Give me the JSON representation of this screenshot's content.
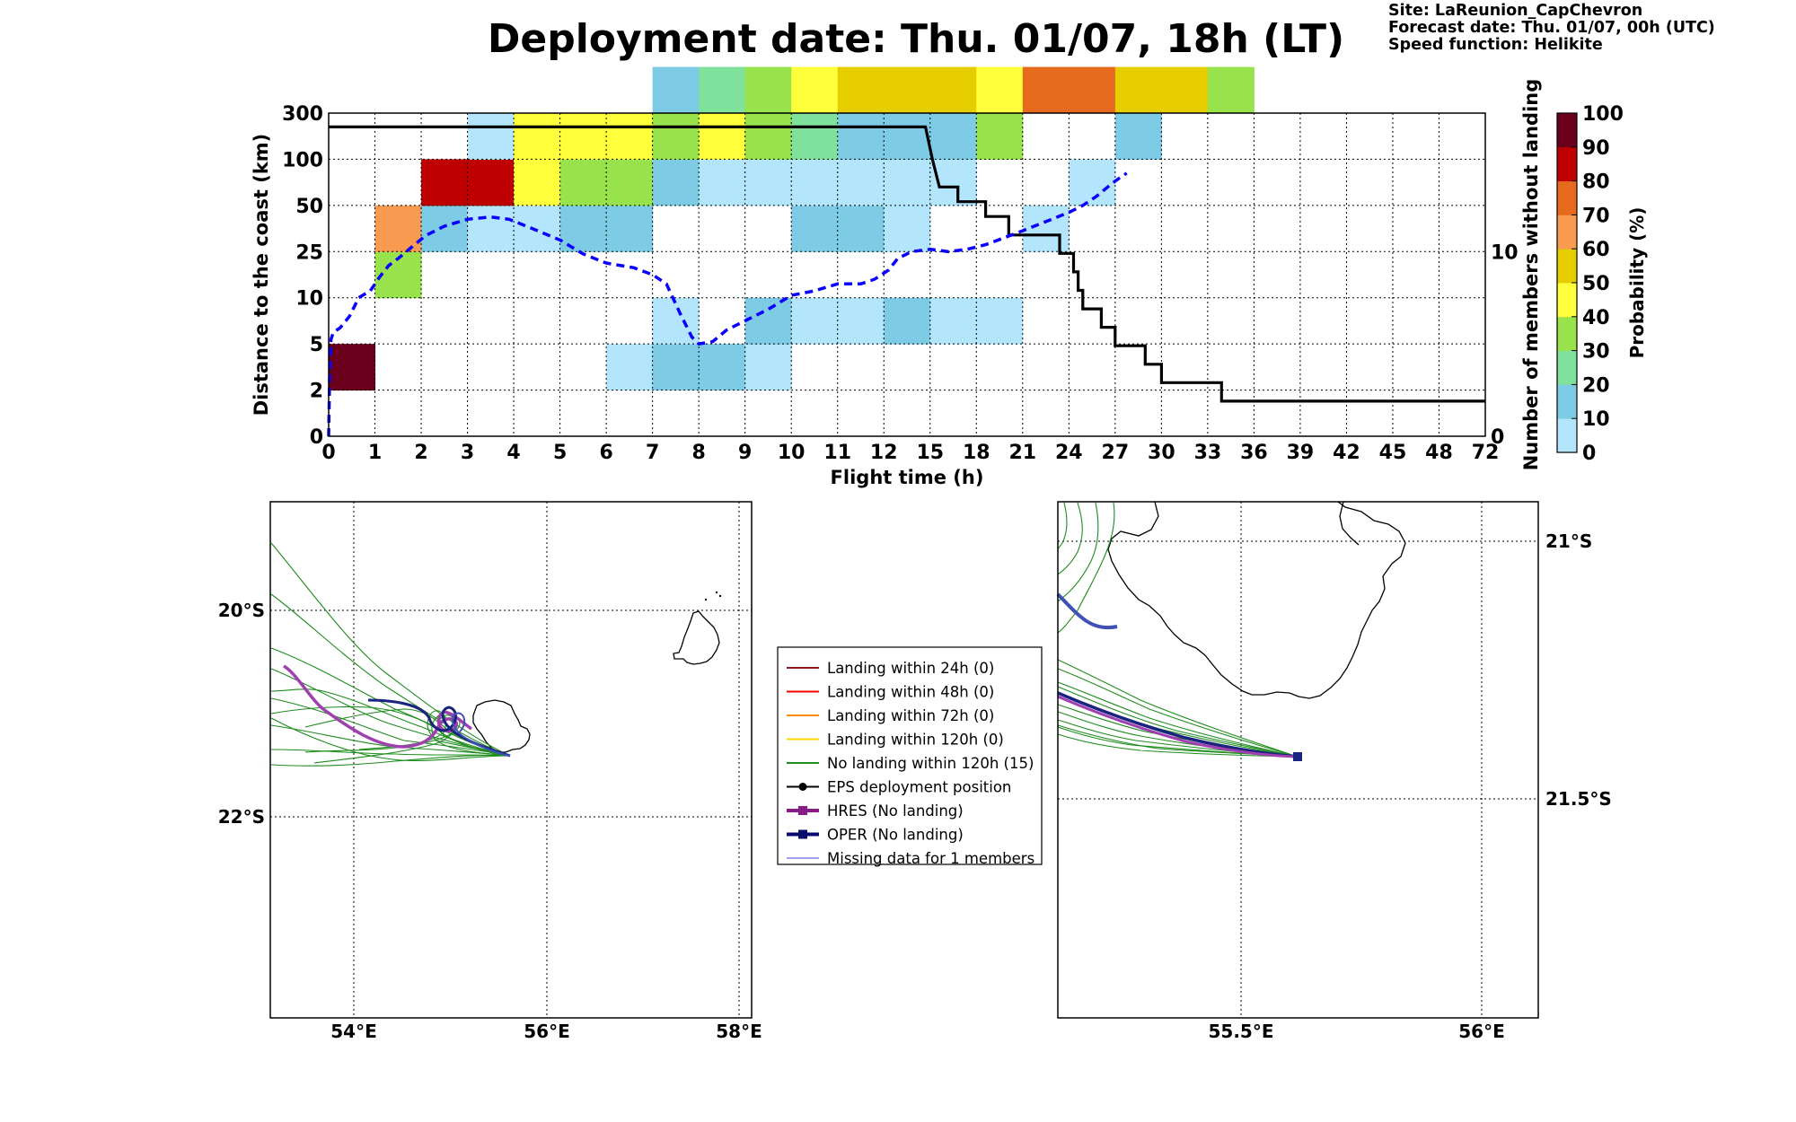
{
  "title": "Deployment date: Thu. 01/07, 18h (LT)",
  "info": {
    "site": "Site: LaReunion_CapChevron",
    "forecast": "Forecast date: Thu. 01/07, 00h (UTC)",
    "speed": "Speed function: Helikite"
  },
  "colors": {
    "prob_bins": [
      "#b3e5fc",
      "#7ecbe6",
      "#7fe19c",
      "#98e34b",
      "#ffff3c",
      "#e5cd00",
      "#f89a4f",
      "#e56a1d",
      "#bf0000",
      "#6b001d"
    ],
    "median_curve": "#0a00ff",
    "count_curve": "#000000",
    "traj_green": "#1e8c1e",
    "hres": "#a040b0",
    "oper": "#1a237e",
    "missing": "#4040e0"
  },
  "chart_data": [
    {
      "type": "heatmap",
      "title": "",
      "xlabel": "Flight time (h)",
      "ylabel": "Distance to the coast (km)",
      "ylabel_right": "Number of members without landing",
      "colorbar_label": "Probability (%)",
      "grid": true,
      "x_ticks": [
        "0",
        "1",
        "2",
        "3",
        "4",
        "5",
        "6",
        "7",
        "8",
        "9",
        "10",
        "11",
        "12",
        "15",
        "18",
        "21",
        "24",
        "27",
        "30",
        "33",
        "36",
        "39",
        "42",
        "45",
        "48",
        "72"
      ],
      "y_ticks": [
        "0",
        "2",
        "5",
        "10",
        "25",
        "50",
        "100",
        "300"
      ],
      "y_right_ticks": [
        "0",
        "10"
      ],
      "y_right_range": [
        0,
        17.5
      ],
      "colorbar_ticks": [
        "0",
        "10",
        "20",
        "30",
        "40",
        "50",
        "60",
        "70",
        "80",
        "90",
        "100"
      ],
      "cells": [
        [
          0,
          1,
          90
        ],
        [
          1,
          3,
          30
        ],
        [
          1,
          4,
          60
        ],
        [
          2,
          4,
          10
        ],
        [
          2,
          5,
          80
        ],
        [
          3,
          4,
          0
        ],
        [
          3,
          5,
          80
        ],
        [
          3,
          6,
          0
        ],
        [
          4,
          4,
          0
        ],
        [
          4,
          5,
          40
        ],
        [
          4,
          6,
          40
        ],
        [
          5,
          4,
          10
        ],
        [
          5,
          5,
          30
        ],
        [
          5,
          6,
          40
        ],
        [
          6,
          1,
          0
        ],
        [
          6,
          4,
          10
        ],
        [
          6,
          5,
          30
        ],
        [
          6,
          6,
          40
        ],
        [
          7,
          1,
          10
        ],
        [
          7,
          2,
          0
        ],
        [
          7,
          5,
          10
        ],
        [
          7,
          6,
          30
        ],
        [
          7,
          7,
          10
        ],
        [
          8,
          1,
          10
        ],
        [
          8,
          5,
          0
        ],
        [
          8,
          6,
          40
        ],
        [
          8,
          7,
          20
        ],
        [
          9,
          1,
          0
        ],
        [
          9,
          2,
          10
        ],
        [
          9,
          5,
          0
        ],
        [
          9,
          6,
          30
        ],
        [
          9,
          7,
          30
        ],
        [
          10,
          2,
          0
        ],
        [
          10,
          4,
          10
        ],
        [
          10,
          5,
          0
        ],
        [
          10,
          6,
          20
        ],
        [
          10,
          7,
          40
        ],
        [
          11,
          2,
          0
        ],
        [
          11,
          4,
          10
        ],
        [
          11,
          5,
          0
        ],
        [
          11,
          6,
          10
        ],
        [
          11,
          7,
          50
        ],
        [
          12,
          2,
          10
        ],
        [
          12,
          4,
          0
        ],
        [
          12,
          5,
          0
        ],
        [
          12,
          6,
          10
        ],
        [
          12,
          7,
          50
        ],
        [
          13,
          2,
          0
        ],
        [
          13,
          5,
          0
        ],
        [
          13,
          6,
          10
        ],
        [
          13,
          7,
          50
        ],
        [
          14,
          2,
          0
        ],
        [
          14,
          6,
          30
        ],
        [
          14,
          7,
          40
        ],
        [
          15,
          4,
          0
        ],
        [
          15,
          7,
          70
        ],
        [
          16,
          5,
          0
        ],
        [
          16,
          7,
          70
        ],
        [
          17,
          6,
          10
        ],
        [
          17,
          7,
          50
        ],
        [
          18,
          7,
          50
        ],
        [
          19,
          7,
          30
        ]
      ],
      "count_series": {
        "name": "Number of members without landing",
        "points": [
          [
            0,
            16.75
          ],
          [
            12.9,
            16.75
          ],
          [
            13.05,
            15.0
          ],
          [
            13.2,
            13.5
          ],
          [
            13.6,
            13.5
          ],
          [
            13.6,
            12.7
          ],
          [
            14.2,
            12.7
          ],
          [
            14.2,
            11.9
          ],
          [
            14.7,
            11.9
          ],
          [
            14.7,
            10.9
          ],
          [
            15.8,
            10.9
          ],
          [
            15.8,
            9.9
          ],
          [
            16.1,
            9.9
          ],
          [
            16.1,
            8.9
          ],
          [
            16.2,
            8.9
          ],
          [
            16.2,
            7.9
          ],
          [
            16.3,
            7.9
          ],
          [
            16.3,
            6.9
          ],
          [
            16.7,
            6.9
          ],
          [
            16.7,
            5.9
          ],
          [
            17.0,
            5.9
          ],
          [
            17.0,
            4.9
          ],
          [
            17.65,
            4.9
          ],
          [
            17.65,
            3.9
          ],
          [
            18.0,
            3.9
          ],
          [
            18.0,
            2.9
          ],
          [
            19.3,
            2.9
          ],
          [
            19.3,
            1.9
          ],
          [
            25,
            1.9
          ]
        ]
      },
      "median_series": {
        "name": "",
        "points": [
          [
            0,
            0
          ],
          [
            0.02,
            1.2
          ],
          [
            0.05,
            2.1
          ],
          [
            0.1,
            2.25
          ],
          [
            0.25,
            2.35
          ],
          [
            0.45,
            2.6
          ],
          [
            0.65,
            3.0
          ],
          [
            0.9,
            3.15
          ],
          [
            1.1,
            3.45
          ],
          [
            1.3,
            3.7
          ],
          [
            1.5,
            3.85
          ],
          [
            1.8,
            4.1
          ],
          [
            2.1,
            4.35
          ],
          [
            2.5,
            4.55
          ],
          [
            3.0,
            4.7
          ],
          [
            3.5,
            4.75
          ],
          [
            3.9,
            4.7
          ],
          [
            4.4,
            4.5
          ],
          [
            5.0,
            4.25
          ],
          [
            5.5,
            3.95
          ],
          [
            6.0,
            3.75
          ],
          [
            6.6,
            3.65
          ],
          [
            7.0,
            3.5
          ],
          [
            7.3,
            3.3
          ],
          [
            7.6,
            2.65
          ],
          [
            7.85,
            2.15
          ],
          [
            8.0,
            2.0
          ],
          [
            8.3,
            2.05
          ],
          [
            8.6,
            2.3
          ],
          [
            9.0,
            2.5
          ],
          [
            9.5,
            2.75
          ],
          [
            10.0,
            3.05
          ],
          [
            10.5,
            3.15
          ],
          [
            11.0,
            3.3
          ],
          [
            11.5,
            3.3
          ],
          [
            11.8,
            3.4
          ],
          [
            12.1,
            3.6
          ],
          [
            12.3,
            3.85
          ],
          [
            12.6,
            4.0
          ],
          [
            13.0,
            4.05
          ],
          [
            13.4,
            4.0
          ],
          [
            13.8,
            4.05
          ],
          [
            14.2,
            4.15
          ],
          [
            14.6,
            4.3
          ],
          [
            15.0,
            4.45
          ],
          [
            15.5,
            4.65
          ],
          [
            16.0,
            4.85
          ],
          [
            16.3,
            5.0
          ],
          [
            16.6,
            5.2
          ],
          [
            16.9,
            5.45
          ],
          [
            17.1,
            5.6
          ],
          [
            17.25,
            5.7
          ]
        ]
      }
    }
  ],
  "maps": {
    "left": {
      "lon_ticks": [
        "54°E",
        "56°E",
        "58°E"
      ],
      "lat_ticks": [
        "20°S",
        "22°S"
      ]
    },
    "right": {
      "lon_ticks": [
        "55.5°E",
        "56°E"
      ],
      "lat_ticks": [
        "21°S",
        "21.5°S"
      ]
    }
  },
  "legend": {
    "items": [
      {
        "label": "Landing within 24h (0)",
        "color": "#8b1a1a",
        "marker": "none",
        "width": 2
      },
      {
        "label": "Landing within 48h (0)",
        "color": "#ff0000",
        "marker": "none",
        "width": 2
      },
      {
        "label": "Landing within 72h (0)",
        "color": "#ff8c00",
        "marker": "none",
        "width": 2
      },
      {
        "label": "Landing within 120h (0)",
        "color": "#ffd700",
        "marker": "none",
        "width": 2
      },
      {
        "label": "No landing within 120h (15)",
        "color": "#1e8c1e",
        "marker": "none",
        "width": 2
      },
      {
        "label": "EPS deployment position",
        "color": "#000000",
        "marker": "circle",
        "width": 2
      },
      {
        "label": "HRES (No landing)",
        "color": "#8b1a8b",
        "marker": "square",
        "width": 4
      },
      {
        "label": "OPER (No landing)",
        "color": "#0a0a6e",
        "marker": "square",
        "width": 4
      },
      {
        "label": "Missing data for 1 members",
        "color": "#4040e0",
        "marker": "none",
        "width": 1
      }
    ]
  }
}
